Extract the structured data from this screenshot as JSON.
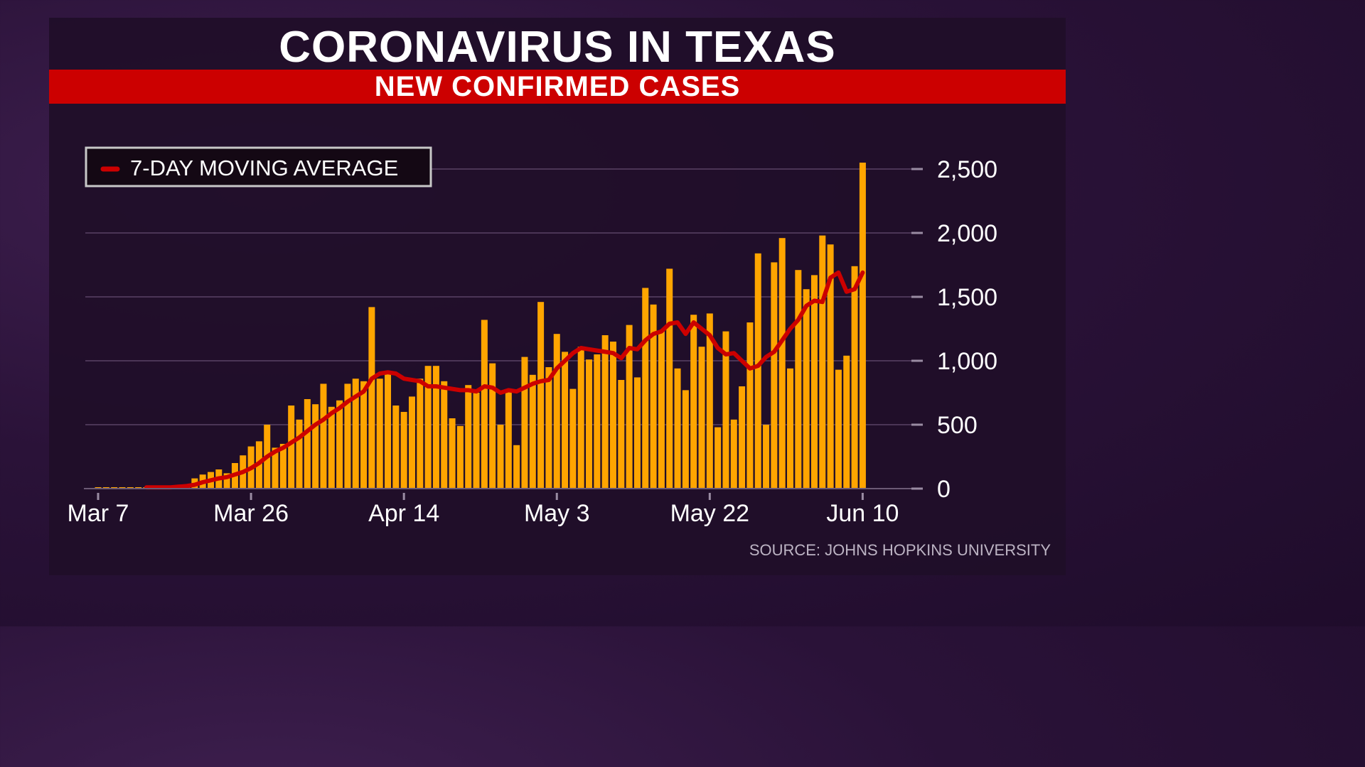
{
  "title": "CORONAVIRUS IN TEXAS",
  "subtitle": "NEW CONFIRMED CASES",
  "source": "SOURCE: JOHNS HOPKINS UNIVERSITY",
  "colors": {
    "bar": "#ffa500",
    "moving_average": "#cc0000",
    "gridline": "#4b3556",
    "text": "#ffffff"
  },
  "chart_data": {
    "type": "bar",
    "start_date": "Mar 7",
    "xlabel": "",
    "ylabel": "",
    "ylim": [
      0,
      2500
    ],
    "grid": true,
    "y_ticks": [
      0,
      500,
      1000,
      1500,
      2000,
      2500
    ],
    "y_tick_labels": [
      "0",
      "500",
      "1,000",
      "1,500",
      "2,000",
      "2,500"
    ],
    "x_ticks": [
      {
        "day": 0,
        "label": "Mar 7"
      },
      {
        "day": 19,
        "label": "Mar 26"
      },
      {
        "day": 38,
        "label": "Apr 14"
      },
      {
        "day": 57,
        "label": "May 3"
      },
      {
        "day": 76,
        "label": "May 22"
      },
      {
        "day": 95,
        "label": "Jun 10"
      }
    ],
    "legend": {
      "label": "7-DAY MOVING AVERAGE",
      "position": "top-left"
    },
    "series": [
      {
        "name": "New confirmed cases",
        "kind": "bar",
        "values": [
          0,
          0,
          0,
          0,
          0,
          0,
          0,
          0,
          0,
          0,
          0,
          0,
          80,
          110,
          130,
          150,
          120,
          200,
          260,
          330,
          370,
          500,
          320,
          350,
          650,
          540,
          700,
          660,
          820,
          640,
          690,
          820,
          860,
          840,
          1420,
          860,
          900,
          650,
          600,
          720,
          860,
          960,
          960,
          840,
          550,
          490,
          810,
          750,
          1320,
          980,
          500,
          780,
          340,
          1030,
          890,
          1460,
          950,
          1210,
          1070,
          780,
          1110,
          1010,
          1050,
          1200,
          1150,
          850,
          1280,
          870,
          1570,
          1440,
          1230,
          1720,
          940,
          770,
          1360,
          1110,
          1370,
          480,
          1230,
          540,
          800,
          1300,
          1840,
          500,
          1770,
          1960,
          940,
          1710,
          1560,
          1670,
          1980,
          1910,
          930,
          1040,
          1740,
          2550
        ]
      },
      {
        "name": "7-DAY MOVING AVERAGE",
        "kind": "line",
        "values": [
          null,
          null,
          null,
          null,
          null,
          null,
          10,
          10,
          10,
          10,
          15,
          20,
          30,
          50,
          65,
          80,
          90,
          110,
          130,
          160,
          200,
          250,
          290,
          320,
          360,
          400,
          450,
          500,
          540,
          590,
          630,
          680,
          720,
          760,
          860,
          900,
          910,
          900,
          860,
          850,
          840,
          800,
          800,
          790,
          780,
          770,
          770,
          760,
          800,
          790,
          750,
          770,
          760,
          790,
          820,
          840,
          850,
          940,
          1000,
          1060,
          1100,
          1090,
          1080,
          1070,
          1060,
          1020,
          1100,
          1090,
          1160,
          1210,
          1230,
          1290,
          1300,
          1210,
          1300,
          1250,
          1200,
          1100,
          1050,
          1060,
          1000,
          940,
          960,
          1030,
          1070,
          1160,
          1250,
          1320,
          1430,
          1470,
          1460,
          1650,
          1690,
          1540,
          1560,
          1690
        ]
      }
    ]
  }
}
